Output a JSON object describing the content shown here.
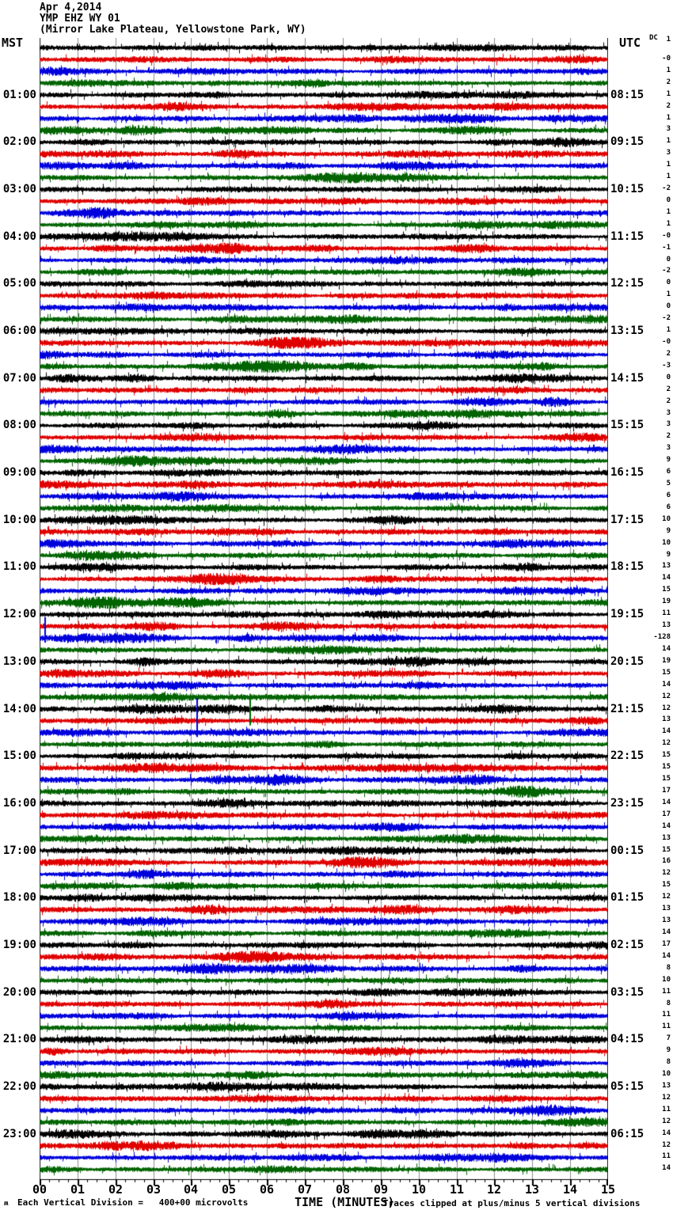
{
  "header": {
    "date": "Apr 4,2014",
    "station": "YMP EHZ WY 01",
    "location": "(Mirror Lake Plateau, Yellowstone Park, WY)"
  },
  "columns": {
    "left_header": "MST",
    "right_header": "UTC",
    "dc_header": "DC"
  },
  "footer": {
    "corner_mark": "ʍ",
    "scale_note": "Each Vertical Division =   400+00 microvolts",
    "xlabel": "TIME (MINUTES)",
    "clip_note": "Traces clipped at plus/minus 5 vertical divisions"
  },
  "chart_data": {
    "type": "line",
    "subtype": "helicorder-seismogram",
    "title": "YMP EHZ WY 01 (Mirror Lake Plateau, Yellowstone Park, WY) Apr 4,2014",
    "xlabel": "TIME (MINUTES)",
    "x_range_minutes": [
      0,
      15
    ],
    "x_tick_labels": [
      "00",
      "01",
      "02",
      "03",
      "04",
      "05",
      "06",
      "07",
      "08",
      "09",
      "10",
      "11",
      "12",
      "13",
      "14",
      "15"
    ],
    "minutes_per_line": 15,
    "lines_per_hour": 4,
    "num_rows": 96,
    "grid": true,
    "grid_color": "#8c8c8c",
    "trace_colors": [
      "#000000",
      "#e00000",
      "#0000dd",
      "#006400"
    ],
    "color_cycle": [
      "black",
      "red",
      "blue",
      "green"
    ],
    "left_axis": "MST",
    "right_axis": "UTC",
    "mst_labels": [
      "01:00",
      "02:00",
      "03:00",
      "04:00",
      "05:00",
      "06:00",
      "07:00",
      "08:00",
      "09:00",
      "10:00",
      "11:00",
      "12:00",
      "13:00",
      "14:00",
      "15:00",
      "16:00",
      "17:00",
      "18:00",
      "19:00",
      "20:00",
      "21:00",
      "22:00",
      "23:00"
    ],
    "utc_labels": [
      "08:15",
      "09:15",
      "10:15",
      "11:15",
      "12:15",
      "13:15",
      "14:15",
      "15:15",
      "16:15",
      "17:15",
      "18:15",
      "19:15",
      "20:15",
      "21:15",
      "22:15",
      "23:15",
      "00:15",
      "01:15",
      "02:15",
      "03:15",
      "04:15",
      "05:15",
      "06:15"
    ],
    "dc_values": [
      "1",
      "-0",
      "1",
      "2",
      "1",
      "2",
      "1",
      "3",
      "1",
      "3",
      "1",
      "1",
      "-2",
      "0",
      "1",
      "1",
      "-0",
      "-1",
      "0",
      "-2",
      "0",
      "1",
      "0",
      "-2",
      "1",
      "-0",
      "2",
      "-3",
      "0",
      "2",
      "2",
      "3",
      "3",
      "2",
      "3",
      "9",
      "6",
      "5",
      "6",
      "6",
      "10",
      "9",
      "10",
      "9",
      "13",
      "14",
      "15",
      "19",
      "11",
      "13",
      "-128",
      "14",
      "19",
      "15",
      "14",
      "12",
      "12",
      "13",
      "14",
      "12",
      "15",
      "15",
      "15",
      "17",
      "14",
      "17",
      "14",
      "13",
      "15",
      "16",
      "12",
      "15",
      "12",
      "13",
      "13",
      "14",
      "17",
      "14",
      "8",
      "10",
      "11",
      "8",
      "11",
      "11",
      "7",
      "9",
      "8",
      "10",
      "13",
      "12",
      "11",
      "12",
      "14",
      "12",
      "11",
      "14"
    ],
    "events": [
      {
        "row": 50,
        "minute": 0.15,
        "up": 26,
        "down": 6,
        "note": "blue transient spike"
      },
      {
        "row": 55,
        "minute": 5.56,
        "up": 4,
        "down": 36,
        "note": "green downward transient"
      },
      {
        "row": 58,
        "minute": 4.16,
        "up": 43,
        "down": 6,
        "note": "blue transient spike"
      }
    ]
  }
}
